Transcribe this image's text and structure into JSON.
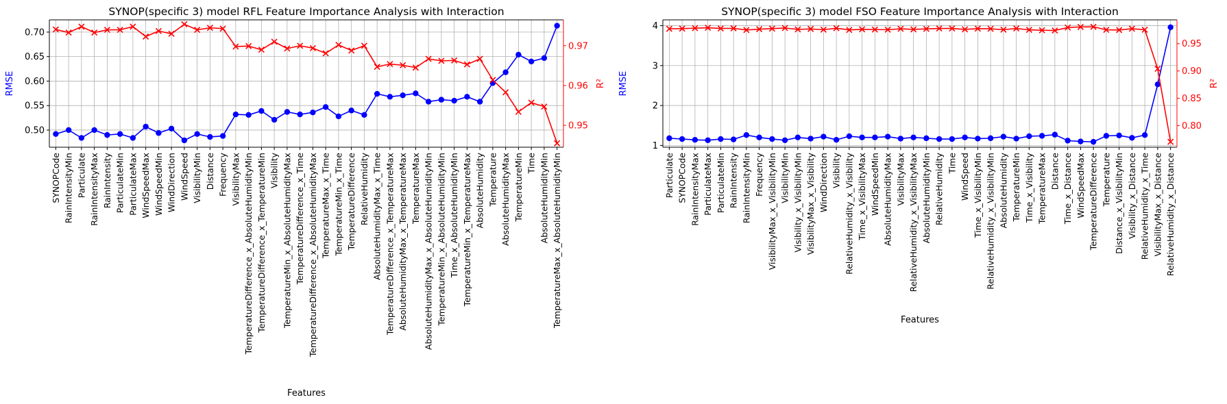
{
  "colors": {
    "rmse": "#0000ff",
    "r2": "#ff0000",
    "grid": "#b0b0b0",
    "axis": "#000000"
  },
  "chart_data": [
    {
      "type": "line",
      "title": "SYNOP(specific 3) model RFL Feature Importance Analysis with Interaction",
      "xlabel": "Features",
      "ylabel_left": "RMSE",
      "ylabel_right": "R²",
      "grid": true,
      "categories": [
        "SYNOPCode",
        "RainIntensityMin",
        "Particulate",
        "RainIntensityMax",
        "RainIntensity",
        "ParticulateMin",
        "ParticulateMax",
        "WindSpeedMax",
        "WindSpeedMin",
        "WindDirection",
        "WindSpeed",
        "VisibilityMin",
        "Distance",
        "Frequency",
        "VisibilityMax",
        "TemperatureDifference_x_AbsoluteHumidityMin",
        "TemperatureDifference_x_TemperatureMin",
        "Visibility",
        "TemperatureMin_x_AbsoluteHumidityMax",
        "TemperatureDifference_x_Time",
        "TemperatureDifference_x_AbsoluteHumidityMax",
        "TemperatureMax_x_Time",
        "TemperatureMin_x_Time",
        "TemperatureDifference",
        "RelativeHumidity",
        "AbsoluteHumidityMax_x_Time",
        "TemperatureDifference_x_TemperatureMax",
        "AbsoluteHumidityMax_x_TemperatureMax",
        "TemperatureMax",
        "AbsoluteHumidityMax_x_AbsoluteHumidityMin",
        "TemperatureMin_x_AbsoluteHumidityMin",
        "Time_x_AbsoluteHumidityMin",
        "TemperatureMin_x_TemperatureMax",
        "AbsoluteHumidity",
        "Temperature",
        "AbsoluteHumidityMax",
        "TemperatureMin",
        "Time",
        "AbsoluteHumidityMin",
        "TemperatureMax_x_AbsoluteHumidityMin"
      ],
      "left_axis": {
        "ylim": [
          0.465,
          0.725
        ],
        "ticks": [
          0.5,
          0.55,
          0.6,
          0.65,
          0.7
        ]
      },
      "right_axis": {
        "ylim": [
          0.9445,
          0.9765
        ],
        "ticks": [
          0.95,
          0.96,
          0.97
        ]
      },
      "series": [
        {
          "name": "RMSE",
          "axis": "left",
          "marker": "circle",
          "values": [
            0.492,
            0.5,
            0.484,
            0.5,
            0.49,
            0.492,
            0.484,
            0.507,
            0.494,
            0.503,
            0.479,
            0.492,
            0.486,
            0.488,
            0.532,
            0.531,
            0.539,
            0.521,
            0.537,
            0.532,
            0.536,
            0.547,
            0.528,
            0.54,
            0.531,
            0.574,
            0.568,
            0.571,
            0.575,
            0.558,
            0.562,
            0.56,
            0.568,
            0.558,
            0.596,
            0.618,
            0.654,
            0.64,
            0.647,
            0.713
          ]
        },
        {
          "name": "R²",
          "axis": "right",
          "marker": "x",
          "values": [
            0.9741,
            0.9733,
            0.9748,
            0.9733,
            0.974,
            0.974,
            0.9748,
            0.9723,
            0.9737,
            0.973,
            0.9754,
            0.974,
            0.9745,
            0.9743,
            0.9698,
            0.9699,
            0.969,
            0.971,
            0.9693,
            0.97,
            0.9694,
            0.9681,
            0.9702,
            0.9688,
            0.97,
            0.9647,
            0.9654,
            0.9651,
            0.9645,
            0.9667,
            0.9662,
            0.9663,
            0.9653,
            0.9667,
            0.9614,
            0.9583,
            0.9534,
            0.9557,
            0.9547,
            0.9455
          ]
        }
      ]
    },
    {
      "type": "line",
      "title": "SYNOP(specific 3) model FSO Feature Importance Analysis with Interaction",
      "xlabel": "Features",
      "ylabel_left": "RMSE",
      "ylabel_right": "R²",
      "grid": true,
      "categories": [
        "Particulate",
        "SYNOPCode",
        "RainIntensityMax",
        "ParticulateMax",
        "ParticulateMin",
        "RainIntensity",
        "RainIntensityMin",
        "Frequency",
        "VisibilityMax_x_VisibilityMin",
        "VisibilityMin",
        "Visibility_x_VisibilityMin",
        "VisibilityMax_x_Visibility",
        "WindDirection",
        "Visibility",
        "RelativeHumidity_x_Visibility",
        "Time_x_VisibilityMax",
        "WindSpeedMin",
        "AbsoluteHumidityMax",
        "VisibilityMax",
        "RelativeHumidity_x_VisibilityMax",
        "AbsoluteHumidityMin",
        "RelativeHumidity",
        "Time",
        "WindSpeed",
        "Time_x_VisibilityMin",
        "RelativeHumidity_x_VisibilityMin",
        "AbsoluteHumidity",
        "TemperatureMin",
        "Time_x_Visibility",
        "TemperatureMax",
        "Distance",
        "Time_x_Distance",
        "WindSpeedMax",
        "TemperatureDifference",
        "Temperature",
        "Distance_x_VisibilityMin",
        "Visibility_x_Distance",
        "RelativeHumidity_x_Time",
        "VisibilityMax_x_Distance",
        "RelativeHumidity_x_Distance"
      ],
      "left_axis": {
        "ylim": [
          0.955,
          4.145
        ],
        "ticks": [
          1,
          2,
          3,
          4
        ]
      },
      "right_axis": {
        "ylim": [
          0.7605,
          0.9935
        ],
        "ticks": [
          0.8,
          0.85,
          0.9,
          0.95
        ]
      },
      "series": [
        {
          "name": "RMSE",
          "axis": "left",
          "marker": "circle",
          "values": [
            1.18,
            1.16,
            1.14,
            1.13,
            1.16,
            1.15,
            1.26,
            1.2,
            1.16,
            1.13,
            1.2,
            1.17,
            1.22,
            1.14,
            1.23,
            1.2,
            1.2,
            1.22,
            1.17,
            1.2,
            1.18,
            1.16,
            1.16,
            1.2,
            1.17,
            1.18,
            1.22,
            1.17,
            1.23,
            1.24,
            1.27,
            1.12,
            1.1,
            1.09,
            1.24,
            1.25,
            1.19,
            1.26,
            2.53,
            3.96
          ]
        },
        {
          "name": "R²",
          "axis": "right",
          "marker": "x",
          "values": [
            0.9772,
            0.9775,
            0.9783,
            0.979,
            0.9778,
            0.978,
            0.975,
            0.9765,
            0.9775,
            0.9786,
            0.976,
            0.9769,
            0.9755,
            0.9782,
            0.9751,
            0.9762,
            0.9758,
            0.9755,
            0.9771,
            0.976,
            0.977,
            0.9778,
            0.9777,
            0.9761,
            0.9775,
            0.9771,
            0.9755,
            0.9777,
            0.9752,
            0.9745,
            0.974,
            0.9795,
            0.9805,
            0.9808,
            0.9753,
            0.975,
            0.9773,
            0.9754,
            0.904,
            0.7705
          ]
        }
      ]
    }
  ]
}
